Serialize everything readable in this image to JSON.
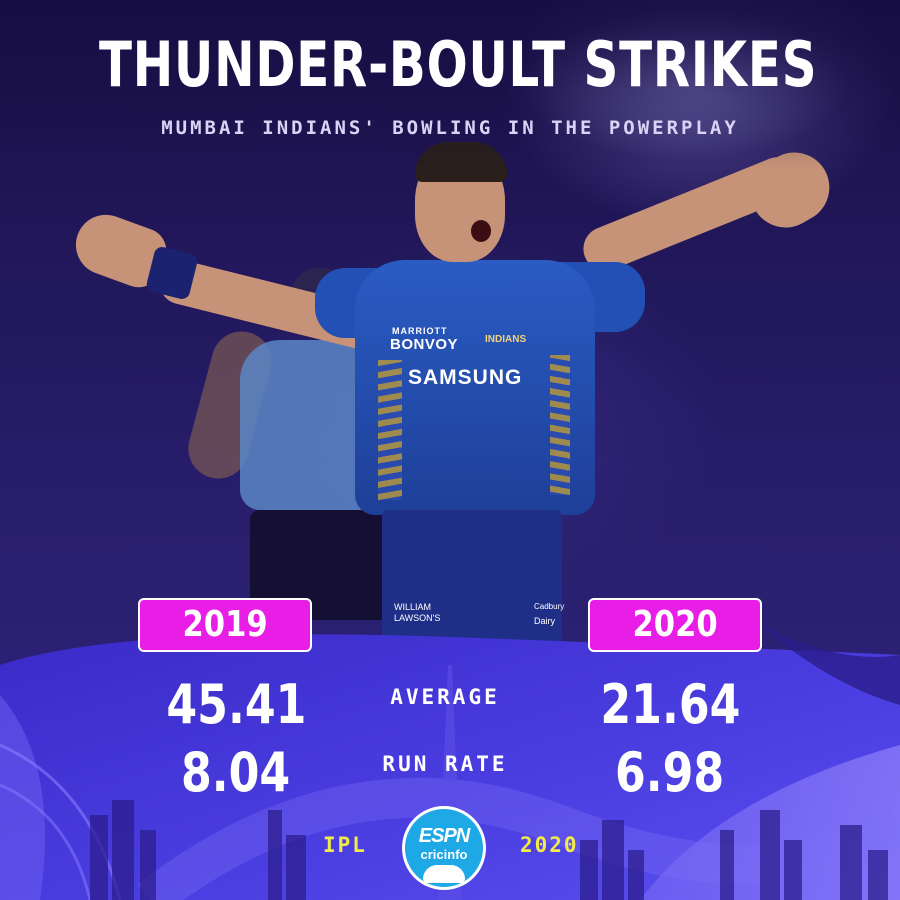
{
  "header": {
    "title": "THUNDER-BOULT STRIKES",
    "subtitle": "MUMBAI INDIANS' BOWLING IN THE POWERPLAY"
  },
  "photo": {
    "jersey_sponsors": {
      "marriott": "MARRIOTT",
      "bonvoy": "BONVOY",
      "team_badge": "INDIANS",
      "samsung": "SAMSUNG",
      "lawson_line1": "WILLIAM",
      "lawson_line2": "LAWSON'S",
      "cadbury": "Cadbury",
      "dairy": "Dairy"
    }
  },
  "stats": {
    "years": [
      "2019",
      "2020"
    ],
    "rows": [
      {
        "label": "AVERAGE",
        "values": [
          "45.41",
          "21.64"
        ]
      },
      {
        "label": "RUN RATE",
        "values": [
          "8.04",
          "6.98"
        ]
      }
    ]
  },
  "footer": {
    "left_text": "IPL",
    "right_text": "2020",
    "logo_line1": "ESPN",
    "logo_line2": "cricinfo"
  },
  "colors": {
    "pill": "#e91ee6",
    "footer_text": "#f2ea4a",
    "logo_badge": "#1fa8e6",
    "panel_blue": "#4636d8"
  }
}
